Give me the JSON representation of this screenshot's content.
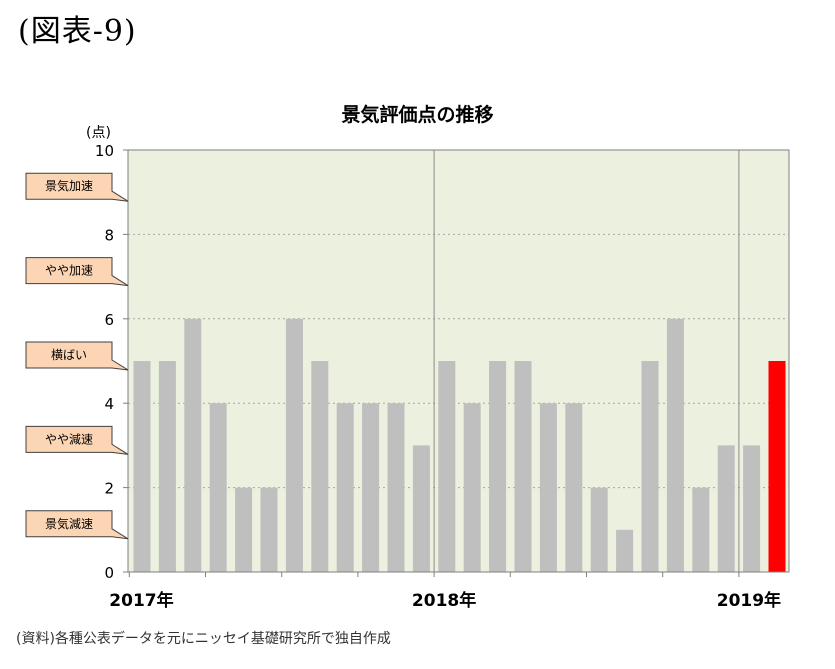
{
  "figure_label": "(図表-9)",
  "source_note": "(資料)各種公表データを元にニッセイ基礎研究所で独自作成",
  "chart_data": {
    "type": "bar",
    "title": "景気評価点の推移",
    "ylabel": "(点)",
    "xlabel": "",
    "ylim": [
      0,
      10
    ],
    "yticks": [
      0,
      2,
      4,
      6,
      8,
      10
    ],
    "grid": true,
    "year_labels": [
      {
        "label": "2017年",
        "index": 0
      },
      {
        "label": "2018年",
        "index": 12
      },
      {
        "label": "2019年",
        "index": 24
      }
    ],
    "values": [
      5,
      5,
      6,
      4,
      2,
      2,
      6,
      5,
      4,
      4,
      4,
      3,
      5,
      4,
      5,
      5,
      4,
      4,
      2,
      1,
      5,
      6,
      2,
      3,
      3,
      5
    ],
    "highlight_index": 25,
    "colors": {
      "plot_bg": "#ebf1de",
      "bar": "#bfbfbf",
      "highlight": "#ff0000",
      "callout_bg": "#fcd5b5"
    },
    "level_callouts": [
      {
        "label": "景気加速",
        "value": 9
      },
      {
        "label": "やや加速",
        "value": 7
      },
      {
        "label": "横ばい",
        "value": 5
      },
      {
        "label": "やや減速",
        "value": 3
      },
      {
        "label": "景気減速",
        "value": 1
      }
    ]
  }
}
